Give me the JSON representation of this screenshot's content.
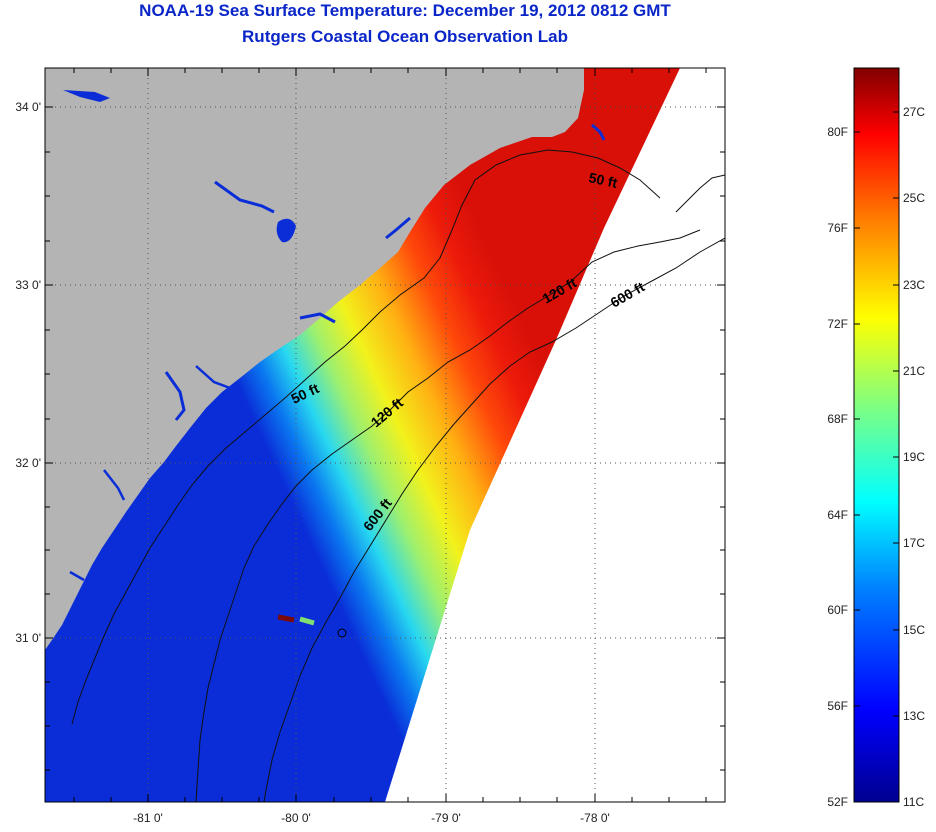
{
  "header": {
    "title": "NOAA-19 Sea Surface Temperature:  December 19, 2012 0812 GMT",
    "subtitle": "Rutgers Coastal Ocean Observation Lab"
  },
  "map": {
    "lon_labels": [
      "-81 0'",
      "-80 0'",
      "-79 0'",
      "-78 0'"
    ],
    "lat_labels": [
      "34 0'",
      "33 0'",
      "32 0'",
      "31 0'"
    ],
    "contours": [
      {
        "label": "50 ft",
        "depth_ft": 50
      },
      {
        "label": "50 ft",
        "depth_ft": 50
      },
      {
        "label": "120 ft",
        "depth_ft": 120
      },
      {
        "label": "120 ft",
        "depth_ft": 120
      },
      {
        "label": "600 ft",
        "depth_ft": 600
      },
      {
        "label": "600 ft",
        "depth_ft": 600
      }
    ],
    "land_color": "#b4b4b4",
    "nodata_color": "#ffffff"
  },
  "colorbar": {
    "f_labels": [
      "80F",
      "76F",
      "72F",
      "68F",
      "64F",
      "60F",
      "56F",
      "52F"
    ],
    "c_labels": [
      "27C",
      "25C",
      "23C",
      "21C",
      "19C",
      "17C",
      "15C",
      "13C",
      "11C"
    ],
    "range_c": [
      11,
      28
    ],
    "colors": [
      "#00008f",
      "#0000ff",
      "#0080ff",
      "#00ffff",
      "#80ff80",
      "#ffff00",
      "#ff8000",
      "#ff0000",
      "#800000"
    ]
  }
}
